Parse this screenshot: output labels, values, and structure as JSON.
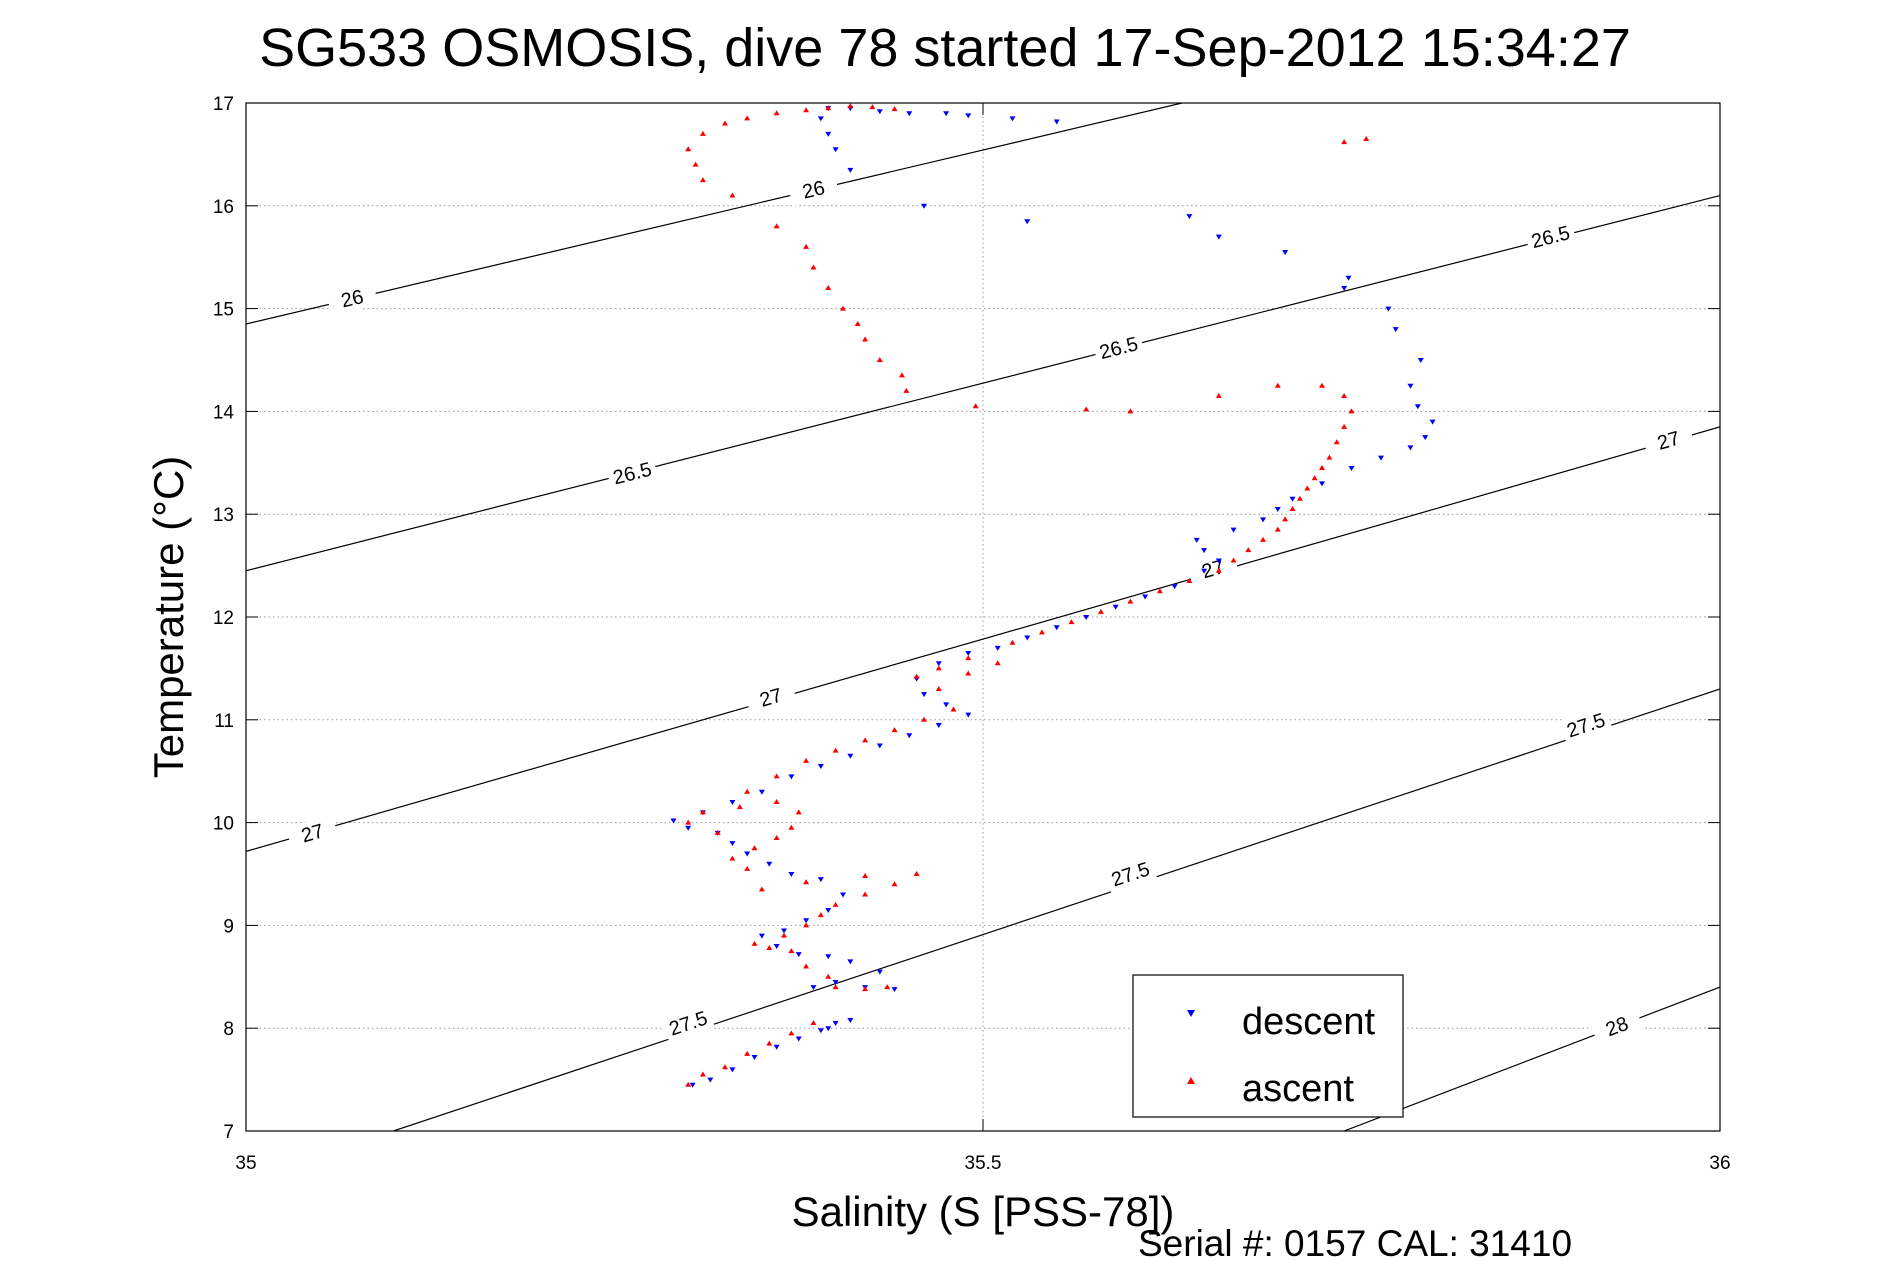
{
  "figure": {
    "footer": "Serial #: 0157  CAL: 31410"
  },
  "chart_data": {
    "type": "scatter",
    "title": "SG533 OSMOSIS, dive 78 started 17-Sep-2012 15:34:27",
    "xlabel": "Salinity (S [PSS-78])",
    "ylabel": "Temperature (°C)",
    "xlim": [
      35,
      36
    ],
    "ylim": [
      7,
      17
    ],
    "x_ticks": [
      35,
      35.5,
      36
    ],
    "x_tick_labels": [
      "35",
      "35.5",
      "36"
    ],
    "y_ticks": [
      7,
      8,
      9,
      10,
      11,
      12,
      13,
      14,
      15,
      16,
      17
    ],
    "y_tick_labels": [
      "7",
      "8",
      "9",
      "10",
      "11",
      "12",
      "13",
      "14",
      "15",
      "16",
      "17"
    ],
    "grid": true,
    "legend_position": "bottom-right",
    "colors": {
      "descent": "#0000ff",
      "ascent": "#ff0000",
      "contour": "#000000",
      "grid": "#999999"
    },
    "series": [
      {
        "name": "descent",
        "marker": "triangle-down",
        "color": "#0000ff",
        "points": [
          [
            35.303,
            7.45
          ],
          [
            35.315,
            7.5
          ],
          [
            35.33,
            7.6
          ],
          [
            35.345,
            7.72
          ],
          [
            35.36,
            7.82
          ],
          [
            35.375,
            7.9
          ],
          [
            35.39,
            7.98
          ],
          [
            35.4,
            8.05
          ],
          [
            35.41,
            8.08
          ],
          [
            35.395,
            8.0
          ],
          [
            35.385,
            8.4
          ],
          [
            35.4,
            8.45
          ],
          [
            35.42,
            8.4
          ],
          [
            35.44,
            8.38
          ],
          [
            35.43,
            8.55
          ],
          [
            35.41,
            8.65
          ],
          [
            35.395,
            8.7
          ],
          [
            35.375,
            8.72
          ],
          [
            35.36,
            8.8
          ],
          [
            35.35,
            8.9
          ],
          [
            35.365,
            8.95
          ],
          [
            35.38,
            9.05
          ],
          [
            35.395,
            9.15
          ],
          [
            35.405,
            9.3
          ],
          [
            35.39,
            9.45
          ],
          [
            35.37,
            9.5
          ],
          [
            35.355,
            9.6
          ],
          [
            35.34,
            9.7
          ],
          [
            35.33,
            9.8
          ],
          [
            35.32,
            9.9
          ],
          [
            35.3,
            9.95
          ],
          [
            35.29,
            10.02
          ],
          [
            35.31,
            10.1
          ],
          [
            35.33,
            10.2
          ],
          [
            35.35,
            10.3
          ],
          [
            35.37,
            10.45
          ],
          [
            35.39,
            10.55
          ],
          [
            35.41,
            10.65
          ],
          [
            35.43,
            10.75
          ],
          [
            35.45,
            10.85
          ],
          [
            35.47,
            10.95
          ],
          [
            35.49,
            11.05
          ],
          [
            35.475,
            11.15
          ],
          [
            35.46,
            11.25
          ],
          [
            35.455,
            11.4
          ],
          [
            35.47,
            11.55
          ],
          [
            35.49,
            11.65
          ],
          [
            35.51,
            11.7
          ],
          [
            35.53,
            11.8
          ],
          [
            35.55,
            11.9
          ],
          [
            35.57,
            12.0
          ],
          [
            35.59,
            12.1
          ],
          [
            35.61,
            12.2
          ],
          [
            35.63,
            12.3
          ],
          [
            35.65,
            12.45
          ],
          [
            35.66,
            12.55
          ],
          [
            35.65,
            12.65
          ],
          [
            35.645,
            12.75
          ],
          [
            35.67,
            12.85
          ],
          [
            35.69,
            12.95
          ],
          [
            35.7,
            13.05
          ],
          [
            35.71,
            13.15
          ],
          [
            35.73,
            13.3
          ],
          [
            35.75,
            13.45
          ],
          [
            35.77,
            13.55
          ],
          [
            35.79,
            13.65
          ],
          [
            35.8,
            13.75
          ],
          [
            35.805,
            13.9
          ],
          [
            35.795,
            14.05
          ],
          [
            35.79,
            14.25
          ],
          [
            35.797,
            14.5
          ],
          [
            35.78,
            14.8
          ],
          [
            35.775,
            15.0
          ],
          [
            35.745,
            15.2
          ],
          [
            35.748,
            15.3
          ],
          [
            35.705,
            15.55
          ],
          [
            35.66,
            15.7
          ],
          [
            35.64,
            15.9
          ],
          [
            35.53,
            15.85
          ],
          [
            35.46,
            16.0
          ],
          [
            35.41,
            16.35
          ],
          [
            35.4,
            16.55
          ],
          [
            35.395,
            16.7
          ],
          [
            35.39,
            16.85
          ],
          [
            35.395,
            16.95
          ],
          [
            35.41,
            16.95
          ],
          [
            35.43,
            16.92
          ],
          [
            35.45,
            16.9
          ],
          [
            35.475,
            16.9
          ],
          [
            35.49,
            16.88
          ],
          [
            35.52,
            16.85
          ],
          [
            35.55,
            16.82
          ]
        ]
      },
      {
        "name": "ascent",
        "marker": "triangle-up",
        "color": "#ff0000",
        "points": [
          [
            35.3,
            7.45
          ],
          [
            35.31,
            7.55
          ],
          [
            35.325,
            7.62
          ],
          [
            35.34,
            7.75
          ],
          [
            35.355,
            7.85
          ],
          [
            35.37,
            7.95
          ],
          [
            35.385,
            8.05
          ],
          [
            35.4,
            8.4
          ],
          [
            35.42,
            8.38
          ],
          [
            35.435,
            8.4
          ],
          [
            35.395,
            8.5
          ],
          [
            35.38,
            8.6
          ],
          [
            35.37,
            8.75
          ],
          [
            35.355,
            8.78
          ],
          [
            35.345,
            8.82
          ],
          [
            35.365,
            8.9
          ],
          [
            35.38,
            9.0
          ],
          [
            35.39,
            9.1
          ],
          [
            35.4,
            9.2
          ],
          [
            35.42,
            9.3
          ],
          [
            35.44,
            9.4
          ],
          [
            35.455,
            9.5
          ],
          [
            35.42,
            9.48
          ],
          [
            35.38,
            9.42
          ],
          [
            35.35,
            9.35
          ],
          [
            35.34,
            9.55
          ],
          [
            35.33,
            9.65
          ],
          [
            35.345,
            9.75
          ],
          [
            35.36,
            9.85
          ],
          [
            35.37,
            9.95
          ],
          [
            35.375,
            10.1
          ],
          [
            35.36,
            10.2
          ],
          [
            35.335,
            10.15
          ],
          [
            35.31,
            10.1
          ],
          [
            35.3,
            10.0
          ],
          [
            35.32,
            9.9
          ],
          [
            35.34,
            10.3
          ],
          [
            35.36,
            10.45
          ],
          [
            35.38,
            10.6
          ],
          [
            35.4,
            10.7
          ],
          [
            35.42,
            10.8
          ],
          [
            35.44,
            10.9
          ],
          [
            35.46,
            11.0
          ],
          [
            35.48,
            11.1
          ],
          [
            35.47,
            11.3
          ],
          [
            35.455,
            11.42
          ],
          [
            35.47,
            11.5
          ],
          [
            35.49,
            11.45
          ],
          [
            35.51,
            11.55
          ],
          [
            35.49,
            11.6
          ],
          [
            35.52,
            11.75
          ],
          [
            35.54,
            11.85
          ],
          [
            35.56,
            11.95
          ],
          [
            35.58,
            12.05
          ],
          [
            35.6,
            12.15
          ],
          [
            35.62,
            12.25
          ],
          [
            35.64,
            12.35
          ],
          [
            35.66,
            12.45
          ],
          [
            35.67,
            12.55
          ],
          [
            35.68,
            12.65
          ],
          [
            35.69,
            12.75
          ],
          [
            35.7,
            12.85
          ],
          [
            35.705,
            12.95
          ],
          [
            35.71,
            13.05
          ],
          [
            35.715,
            13.15
          ],
          [
            35.72,
            13.25
          ],
          [
            35.725,
            13.35
          ],
          [
            35.73,
            13.45
          ],
          [
            35.735,
            13.55
          ],
          [
            35.74,
            13.7
          ],
          [
            35.745,
            13.85
          ],
          [
            35.75,
            14.0
          ],
          [
            35.745,
            14.15
          ],
          [
            35.73,
            14.25
          ],
          [
            35.7,
            14.25
          ],
          [
            35.66,
            14.15
          ],
          [
            35.6,
            14.0
          ],
          [
            35.57,
            14.02
          ],
          [
            35.495,
            14.05
          ],
          [
            35.448,
            14.2
          ],
          [
            35.445,
            14.35
          ],
          [
            35.43,
            14.5
          ],
          [
            35.42,
            14.7
          ],
          [
            35.415,
            14.85
          ],
          [
            35.405,
            15.0
          ],
          [
            35.395,
            15.2
          ],
          [
            35.385,
            15.4
          ],
          [
            35.38,
            15.6
          ],
          [
            35.36,
            15.8
          ],
          [
            35.33,
            16.1
          ],
          [
            35.31,
            16.25
          ],
          [
            35.305,
            16.4
          ],
          [
            35.3,
            16.55
          ],
          [
            35.31,
            16.7
          ],
          [
            35.325,
            16.8
          ],
          [
            35.34,
            16.85
          ],
          [
            35.36,
            16.9
          ],
          [
            35.38,
            16.93
          ],
          [
            35.395,
            16.95
          ],
          [
            35.41,
            16.97
          ],
          [
            35.425,
            16.96
          ],
          [
            35.44,
            16.94
          ],
          [
            35.76,
            16.65
          ],
          [
            35.745,
            16.62
          ]
        ]
      }
    ],
    "density_contours": [
      {
        "label": "26",
        "points": [
          [
            35.0,
            14.85
          ],
          [
            35.635,
            17.0
          ]
        ],
        "label_positions": [
          [
            35.072,
            15.1
          ],
          [
            35.385,
            16.16
          ]
        ]
      },
      {
        "label": "26.5",
        "points": [
          [
            35.0,
            12.45
          ],
          [
            36.0,
            16.1
          ]
        ],
        "label_positions": [
          [
            35.262,
            13.4
          ],
          [
            35.592,
            14.62
          ],
          [
            35.885,
            15.7
          ]
        ]
      },
      {
        "label": "27",
        "points": [
          [
            35.0,
            9.72
          ],
          [
            36.0,
            13.85
          ]
        ],
        "label_positions": [
          [
            35.045,
            9.9
          ],
          [
            35.356,
            11.22
          ],
          [
            35.656,
            12.47
          ],
          [
            35.965,
            13.72
          ]
        ]
      },
      {
        "label": "27.5",
        "points": [
          [
            35.1,
            7.0
          ],
          [
            36.0,
            11.3
          ]
        ],
        "label_positions": [
          [
            35.3,
            8.05
          ],
          [
            35.6,
            9.5
          ],
          [
            35.909,
            10.95
          ]
        ]
      },
      {
        "label": "28",
        "points": [
          [
            35.745,
            7.0
          ],
          [
            36.0,
            8.4
          ]
        ],
        "label_positions": [
          [
            35.93,
            8.02
          ]
        ]
      }
    ]
  }
}
